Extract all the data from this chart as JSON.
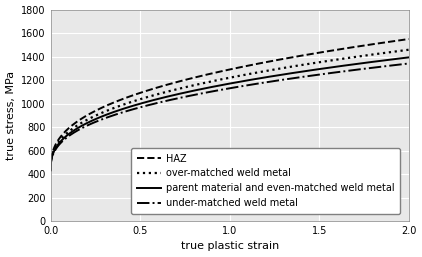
{
  "title": "",
  "xlabel": "true plastic strain",
  "ylabel": "true stress, MPa",
  "xlim": [
    0.0,
    2.0
  ],
  "ylim": [
    0,
    1800
  ],
  "xticks": [
    0.0,
    0.5,
    1.0,
    1.5,
    2.0
  ],
  "yticks": [
    0,
    200,
    400,
    600,
    800,
    1000,
    1200,
    1400,
    1600,
    1800
  ],
  "background_color": "#e8e8e8",
  "grid_color": "#ffffff",
  "curves": [
    {
      "label": "HAZ",
      "linestyle": "--",
      "color": "#000000",
      "linewidth": 1.4,
      "sigma0": 430,
      "K": 860,
      "n": 0.38
    },
    {
      "label": "over-matched weld metal",
      "linestyle": ":",
      "color": "#000000",
      "linewidth": 1.6,
      "sigma0": 430,
      "K": 790,
      "n": 0.38
    },
    {
      "label": "parent material and even-matched weld metal",
      "linestyle": "-",
      "color": "#000000",
      "linewidth": 1.4,
      "sigma0": 430,
      "K": 740,
      "n": 0.38
    },
    {
      "label": "under-matched weld metal",
      "linestyle": "-.",
      "color": "#000000",
      "linewidth": 1.4,
      "sigma0": 430,
      "K": 700,
      "n": 0.38
    }
  ],
  "fontsize_axis_label": 8,
  "fontsize_tick": 7,
  "fontsize_legend": 7
}
